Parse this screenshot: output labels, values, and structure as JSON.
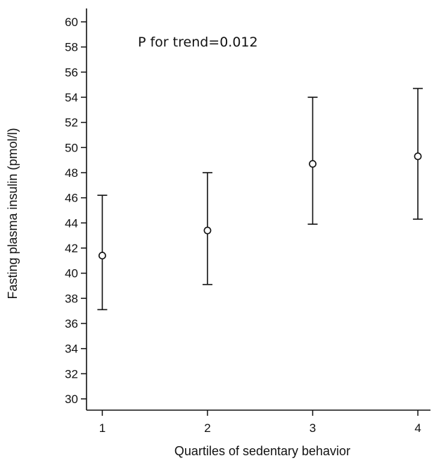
{
  "chart_data": {
    "type": "scatter",
    "title": "",
    "xlabel": "Quartiles of sedentary behavior",
    "ylabel": "Fasting plasma insulin (pmol/l)",
    "x": [
      1,
      2,
      3,
      4
    ],
    "x_tick_labels": [
      "1",
      "2",
      "3",
      "4"
    ],
    "y_tick_labels": [
      "30",
      "32",
      "34",
      "36",
      "38",
      "40",
      "42",
      "44",
      "46",
      "48",
      "50",
      "52",
      "54",
      "56",
      "58",
      "60"
    ],
    "ylim": [
      29,
      61
    ],
    "xlim": [
      0.85,
      4.12
    ],
    "grid": false,
    "legend": "none",
    "series": [
      {
        "values": [
          41.4,
          43.4,
          48.7,
          49.3
        ],
        "lower": [
          37.1,
          39.1,
          43.9,
          44.3
        ],
        "upper": [
          46.2,
          48.0,
          54.0,
          54.7
        ]
      }
    ],
    "annotation": "P for trend=0.012",
    "colors": {
      "marks": "#111111",
      "background": "#ffffff"
    }
  }
}
